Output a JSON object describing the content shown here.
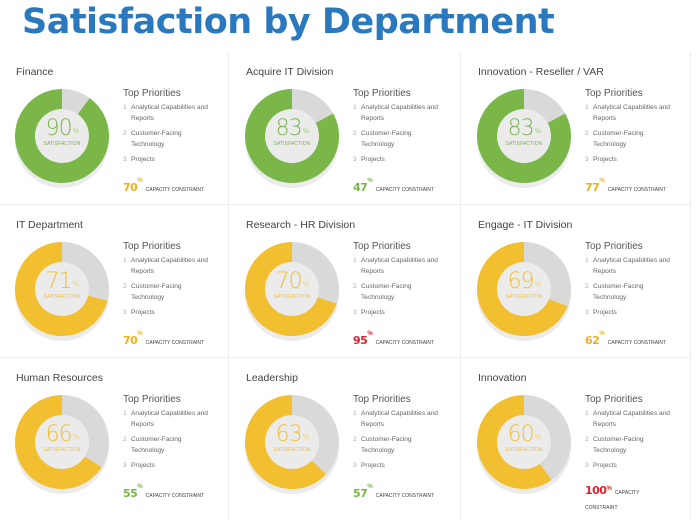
{
  "page": {
    "title": "Satisfaction by Department"
  },
  "labels": {
    "top_priorities": "Top Priorities",
    "satisfaction": "SATISFACTION",
    "capacity_constraint": "CAPACITY CONSTRAINT",
    "pct": "%"
  },
  "colors": {
    "title": "#2a78bd",
    "track": "#d9d9d9",
    "green": "#7ab648",
    "yellow": "#f2bf30",
    "cap_yellow": "#f2b01e",
    "cap_green": "#7ab648",
    "cap_red": "#e0212d"
  },
  "chart_data": {
    "type": "pie",
    "title": "Satisfaction by Department",
    "variant": "donut-grid",
    "departments": [
      {
        "name": "Finance",
        "satisfaction": 90,
        "capacity_constraint": 70,
        "ring_color": "green",
        "capacity_color": "yellow",
        "priorities": [
          "Analytical Capabilities and Reports",
          "Customer-Facing Technology",
          "Projects"
        ]
      },
      {
        "name": "Acquire IT Division",
        "satisfaction": 83,
        "capacity_constraint": 47,
        "ring_color": "green",
        "capacity_color": "green",
        "priorities": [
          "Analytical Capabilities and Reports",
          "Customer-Facing Technology",
          "Projects"
        ]
      },
      {
        "name": "Innovation - Reseller / VAR",
        "satisfaction": 83,
        "capacity_constraint": 77,
        "ring_color": "green",
        "capacity_color": "yellow",
        "priorities": [
          "Analytical Capabilities and Reports",
          "Customer-Facing Technology",
          "Projects"
        ]
      },
      {
        "name": "IT Department",
        "satisfaction": 71,
        "capacity_constraint": 70,
        "ring_color": "yellow",
        "capacity_color": "yellow",
        "priorities": [
          "Analytical Capabilities and Reports",
          "Customer-Facing Technology",
          "Projects"
        ]
      },
      {
        "name": "Research - HR Division",
        "satisfaction": 70,
        "capacity_constraint": 95,
        "ring_color": "yellow",
        "capacity_color": "red",
        "priorities": [
          "Analytical Capabilities and Reports",
          "Customer-Facing Technology",
          "Projects"
        ]
      },
      {
        "name": "Engage - IT Division",
        "satisfaction": 69,
        "capacity_constraint": 62,
        "ring_color": "yellow",
        "capacity_color": "yellow",
        "priorities": [
          "Analytical Capabilities and Reports",
          "Customer-Facing Technology",
          "Projects"
        ]
      },
      {
        "name": "Human Resources",
        "satisfaction": 66,
        "capacity_constraint": 55,
        "ring_color": "yellow",
        "capacity_color": "green",
        "priorities": [
          "Analytical Capabilities and Reports",
          "Customer-Facing Technology",
          "Projects"
        ]
      },
      {
        "name": "Leadership",
        "satisfaction": 63,
        "capacity_constraint": 57,
        "ring_color": "yellow",
        "capacity_color": "green",
        "priorities": [
          "Analytical Capabilities and Reports",
          "Customer-Facing Technology",
          "Projects"
        ]
      },
      {
        "name": "Innovation",
        "satisfaction": 60,
        "capacity_constraint": 100,
        "ring_color": "yellow",
        "capacity_color": "red",
        "priorities": [
          "Analytical Capabilities and Reports",
          "Customer-Facing Technology",
          "Projects"
        ]
      }
    ]
  }
}
